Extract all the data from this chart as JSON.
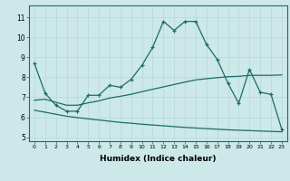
{
  "title": "",
  "xlabel": "Humidex (Indice chaleur)",
  "bg_color": "#cce8e8",
  "line_color": "#1a6b6b",
  "grid_color": "#b8d8d8",
  "xlim": [
    -0.5,
    23.5
  ],
  "ylim": [
    4.8,
    11.6
  ],
  "yticks": [
    5,
    6,
    7,
    8,
    9,
    10,
    11
  ],
  "xticks": [
    0,
    1,
    2,
    3,
    4,
    5,
    6,
    7,
    8,
    9,
    10,
    11,
    12,
    13,
    14,
    15,
    16,
    17,
    18,
    19,
    20,
    21,
    22,
    23
  ],
  "line1_x": [
    0,
    1,
    2,
    3,
    4,
    5,
    6,
    7,
    8,
    9,
    10,
    11,
    12,
    13,
    14,
    15,
    16,
    17,
    18,
    19,
    20,
    21,
    22,
    23
  ],
  "line1_y": [
    8.7,
    7.2,
    6.6,
    6.3,
    6.3,
    7.1,
    7.1,
    7.6,
    7.5,
    7.9,
    8.6,
    9.5,
    10.8,
    10.35,
    10.8,
    10.8,
    9.65,
    8.9,
    7.7,
    6.7,
    8.4,
    7.25,
    7.15,
    5.4
  ],
  "line2_x": [
    0,
    1,
    2,
    3,
    4,
    5,
    6,
    7,
    8,
    9,
    10,
    11,
    12,
    13,
    14,
    15,
    16,
    17,
    18,
    19,
    20,
    21,
    22,
    23
  ],
  "line2_y": [
    6.85,
    6.9,
    6.75,
    6.6,
    6.6,
    6.72,
    6.82,
    6.96,
    7.05,
    7.15,
    7.28,
    7.4,
    7.52,
    7.64,
    7.76,
    7.87,
    7.93,
    7.98,
    8.03,
    8.05,
    8.1,
    8.1,
    8.1,
    8.12
  ],
  "line3_x": [
    0,
    1,
    2,
    3,
    4,
    5,
    6,
    7,
    8,
    9,
    10,
    11,
    12,
    13,
    14,
    15,
    16,
    17,
    18,
    19,
    20,
    21,
    22,
    23
  ],
  "line3_y": [
    6.35,
    6.25,
    6.15,
    6.05,
    5.98,
    5.92,
    5.86,
    5.8,
    5.74,
    5.7,
    5.65,
    5.61,
    5.57,
    5.53,
    5.49,
    5.46,
    5.43,
    5.4,
    5.37,
    5.35,
    5.33,
    5.31,
    5.29,
    5.27
  ]
}
